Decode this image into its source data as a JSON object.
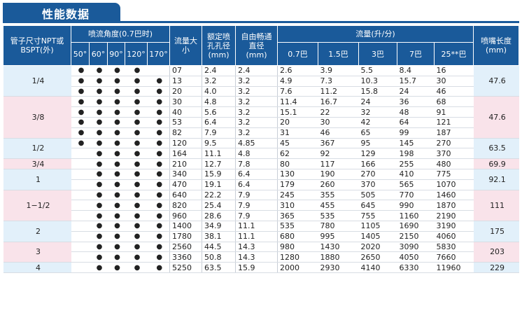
{
  "title": "性能数据",
  "headers": {
    "size": "管子尺寸NPT或BSPT(外)",
    "spray_angle": "喷流角度(0.7巴时)",
    "angles": [
      "50°",
      "60°",
      "90°",
      "120°",
      "170°"
    ],
    "capacity_size": "流量大小",
    "orifice": "额定喷孔孔径(mm)",
    "free_passage": "自由畅通直径(mm)",
    "flow": "流量(升/分)",
    "pressures": [
      "0.7巴",
      "1.5巴",
      "3巴",
      "7巴",
      "25**巴"
    ],
    "tip_length": "喷嘴长度(mm)"
  },
  "dot": "●",
  "colors": {
    "header": "#1a5a9a",
    "blue_band": "#e2f0fa",
    "pink_band": "#f9e3ea"
  },
  "groups": [
    {
      "size": "1/4",
      "tip": "47.6",
      "band": "blue",
      "rows": [
        {
          "a": [
            1,
            1,
            1,
            1,
            0
          ],
          "cap": "07",
          "orifice": "2.4",
          "free": "2.4",
          "flow": [
            "2.6",
            "3.9",
            "5.5",
            "8.4",
            "16"
          ]
        },
        {
          "a": [
            1,
            1,
            1,
            1,
            1
          ],
          "cap": "13",
          "orifice": "3.2",
          "free": "3.2",
          "flow": [
            "4.9",
            "7.3",
            "10.3",
            "15.7",
            "30"
          ]
        },
        {
          "a": [
            1,
            1,
            1,
            1,
            1
          ],
          "cap": "20",
          "orifice": "4.0",
          "free": "3.2",
          "flow": [
            "7.6",
            "11.2",
            "15.8",
            "24",
            "46"
          ]
        }
      ]
    },
    {
      "size": "3/8",
      "tip": "47.6",
      "band": "pink",
      "rows": [
        {
          "a": [
            1,
            1,
            1,
            1,
            1
          ],
          "cap": "30",
          "orifice": "4.8",
          "free": "3.2",
          "flow": [
            "11.4",
            "16.7",
            "24",
            "36",
            "68"
          ]
        },
        {
          "a": [
            1,
            1,
            1,
            1,
            1
          ],
          "cap": "40",
          "orifice": "5.6",
          "free": "3.2",
          "flow": [
            "15.1",
            "22",
            "32",
            "48",
            "91"
          ]
        },
        {
          "a": [
            1,
            1,
            1,
            1,
            1
          ],
          "cap": "53",
          "orifice": "6.4",
          "free": "3.2",
          "flow": [
            "20",
            "30",
            "42",
            "64",
            "121"
          ]
        },
        {
          "a": [
            1,
            1,
            1,
            1,
            1
          ],
          "cap": "82",
          "orifice": "7.9",
          "free": "3.2",
          "flow": [
            "31",
            "46",
            "65",
            "99",
            "187"
          ]
        }
      ]
    },
    {
      "size": "1/2",
      "tip": "63.5",
      "band": "blue",
      "rows": [
        {
          "a": [
            1,
            1,
            1,
            1,
            1
          ],
          "cap": "120",
          "orifice": "9.5",
          "free": "4.85",
          "flow": [
            "45",
            "367",
            "95",
            "145",
            "270"
          ]
        },
        {
          "a": [
            0,
            1,
            1,
            1,
            1
          ],
          "cap": "164",
          "orifice": "11.1",
          "free": "4.8",
          "flow": [
            "62",
            "92",
            "129",
            "198",
            "370"
          ]
        }
      ]
    },
    {
      "size": "3/4",
      "tip": "69.9",
      "band": "pink",
      "rows": [
        {
          "a": [
            0,
            1,
            1,
            1,
            1
          ],
          "cap": "210",
          "orifice": "12.7",
          "free": "7.8",
          "flow": [
            "80",
            "117",
            "166",
            "255",
            "480"
          ]
        }
      ]
    },
    {
      "size": "1",
      "tip": "92.1",
      "band": "blue",
      "rows": [
        {
          "a": [
            0,
            1,
            1,
            1,
            1
          ],
          "cap": "340",
          "orifice": "15.9",
          "free": "6.4",
          "flow": [
            "130",
            "190",
            "270",
            "410",
            "775"
          ]
        },
        {
          "a": [
            0,
            1,
            1,
            1,
            1
          ],
          "cap": "470",
          "orifice": "19.1",
          "free": "6.4",
          "flow": [
            "179",
            "260",
            "370",
            "565",
            "1070"
          ]
        }
      ]
    },
    {
      "size": "1−1/2",
      "tip": "111",
      "band": "pink",
      "rows": [
        {
          "a": [
            0,
            1,
            1,
            1,
            1
          ],
          "cap": "640",
          "orifice": "22.2",
          "free": "7.9",
          "flow": [
            "245",
            "355",
            "505",
            "770",
            "1460"
          ]
        },
        {
          "a": [
            0,
            1,
            1,
            1,
            1
          ],
          "cap": "820",
          "orifice": "25.4",
          "free": "7.9",
          "flow": [
            "310",
            "455",
            "645",
            "990",
            "1870"
          ]
        },
        {
          "a": [
            0,
            1,
            1,
            1,
            1
          ],
          "cap": "960",
          "orifice": "28.6",
          "free": "7.9",
          "flow": [
            "365",
            "535",
            "755",
            "1160",
            "2190"
          ]
        }
      ]
    },
    {
      "size": "2",
      "tip": "175",
      "band": "blue",
      "rows": [
        {
          "a": [
            0,
            1,
            1,
            1,
            1
          ],
          "cap": "1400",
          "orifice": "34.9",
          "free": "11.1",
          "flow": [
            "535",
            "780",
            "1105",
            "1690",
            "3190"
          ]
        },
        {
          "a": [
            0,
            1,
            1,
            1,
            1
          ],
          "cap": "1780",
          "orifice": "38.1",
          "free": "11.1",
          "flow": [
            "680",
            "995",
            "1405",
            "2150",
            "4060"
          ]
        }
      ]
    },
    {
      "size": "3",
      "tip": "203",
      "band": "pink",
      "rows": [
        {
          "a": [
            0,
            1,
            1,
            1,
            1
          ],
          "cap": "2560",
          "orifice": "44.5",
          "free": "14.3",
          "flow": [
            "980",
            "1430",
            "2020",
            "3090",
            "5830"
          ]
        },
        {
          "a": [
            0,
            1,
            1,
            1,
            1
          ],
          "cap": "3360",
          "orifice": "50.8",
          "free": "14.3",
          "flow": [
            "1280",
            "1880",
            "2650",
            "4050",
            "7660"
          ]
        }
      ]
    },
    {
      "size": "4",
      "tip": "229",
      "band": "blue",
      "rows": [
        {
          "a": [
            0,
            1,
            1,
            1,
            1
          ],
          "cap": "5250",
          "orifice": "63.5",
          "free": "15.9",
          "flow": [
            "2000",
            "2930",
            "4140",
            "6330",
            "11960"
          ]
        }
      ]
    }
  ]
}
